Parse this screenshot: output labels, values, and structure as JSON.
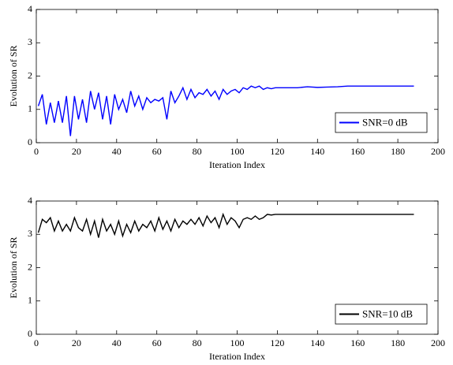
{
  "chart_data": [
    {
      "type": "line",
      "xlabel": "Iteration Index",
      "ylabel": "Evolution of SR",
      "x": [
        1,
        3,
        5,
        7,
        9,
        11,
        13,
        15,
        17,
        19,
        21,
        23,
        25,
        27,
        29,
        31,
        33,
        35,
        37,
        39,
        41,
        43,
        45,
        47,
        49,
        51,
        53,
        55,
        57,
        59,
        61,
        63,
        65,
        67,
        69,
        71,
        73,
        75,
        77,
        79,
        81,
        83,
        85,
        87,
        89,
        91,
        93,
        95,
        97,
        99,
        101,
        103,
        105,
        107,
        109,
        111,
        113,
        115,
        117,
        119,
        125,
        130,
        135,
        140,
        145,
        150,
        155,
        160,
        165,
        170,
        175,
        180,
        188
      ],
      "series": [
        {
          "name": "SNR=0 dB",
          "color": "#0000ff",
          "values": [
            1.1,
            1.45,
            0.55,
            1.2,
            0.6,
            1.25,
            0.6,
            1.4,
            0.2,
            1.4,
            0.7,
            1.3,
            0.6,
            1.55,
            1.0,
            1.5,
            0.7,
            1.4,
            0.55,
            1.45,
            1.0,
            1.3,
            0.9,
            1.55,
            1.1,
            1.4,
            1.0,
            1.35,
            1.2,
            1.3,
            1.25,
            1.35,
            0.7,
            1.55,
            1.2,
            1.4,
            1.65,
            1.3,
            1.6,
            1.35,
            1.5,
            1.45,
            1.6,
            1.4,
            1.55,
            1.3,
            1.6,
            1.45,
            1.55,
            1.6,
            1.5,
            1.65,
            1.6,
            1.7,
            1.65,
            1.7,
            1.6,
            1.65,
            1.62,
            1.65,
            1.65,
            1.65,
            1.68,
            1.66,
            1.67,
            1.68,
            1.7,
            1.7,
            1.7,
            1.7,
            1.7,
            1.7,
            1.7
          ]
        }
      ],
      "xlim": [
        0,
        200
      ],
      "ylim": [
        0,
        4
      ],
      "xticks": [
        0,
        20,
        40,
        60,
        80,
        100,
        120,
        140,
        160,
        180,
        200
      ],
      "yticks": [
        0,
        1,
        2,
        3,
        4
      ],
      "legend": "lower right"
    },
    {
      "type": "line",
      "xlabel": "Iteration Index",
      "ylabel": "Evolution of SR",
      "x": [
        1,
        3,
        5,
        7,
        9,
        11,
        13,
        15,
        17,
        19,
        21,
        23,
        25,
        27,
        29,
        31,
        33,
        35,
        37,
        39,
        41,
        43,
        45,
        47,
        49,
        51,
        53,
        55,
        57,
        59,
        61,
        63,
        65,
        67,
        69,
        71,
        73,
        75,
        77,
        79,
        81,
        83,
        85,
        87,
        89,
        91,
        93,
        95,
        97,
        99,
        101,
        103,
        105,
        107,
        109,
        111,
        113,
        115,
        117,
        119,
        125,
        130,
        135,
        140,
        145,
        150,
        155,
        160,
        165,
        170,
        175,
        180,
        188
      ],
      "series": [
        {
          "name": "SNR=10 dB",
          "color": "#000000",
          "values": [
            3.05,
            3.45,
            3.35,
            3.5,
            3.1,
            3.4,
            3.1,
            3.3,
            3.1,
            3.5,
            3.2,
            3.1,
            3.45,
            3.0,
            3.4,
            2.9,
            3.45,
            3.1,
            3.3,
            3.0,
            3.4,
            2.95,
            3.3,
            3.05,
            3.4,
            3.1,
            3.3,
            3.2,
            3.4,
            3.1,
            3.5,
            3.15,
            3.4,
            3.1,
            3.45,
            3.2,
            3.4,
            3.3,
            3.45,
            3.3,
            3.5,
            3.25,
            3.55,
            3.35,
            3.5,
            3.2,
            3.6,
            3.3,
            3.5,
            3.4,
            3.2,
            3.45,
            3.5,
            3.45,
            3.55,
            3.45,
            3.5,
            3.6,
            3.58,
            3.6,
            3.6,
            3.6,
            3.6,
            3.6,
            3.6,
            3.6,
            3.6,
            3.6,
            3.6,
            3.6,
            3.6,
            3.6,
            3.6
          ]
        }
      ],
      "xlim": [
        0,
        200
      ],
      "ylim": [
        0,
        4
      ],
      "xticks": [
        0,
        20,
        40,
        60,
        80,
        100,
        120,
        140,
        160,
        180,
        200
      ],
      "yticks": [
        0,
        1,
        2,
        3,
        4
      ],
      "legend": "lower right"
    }
  ]
}
